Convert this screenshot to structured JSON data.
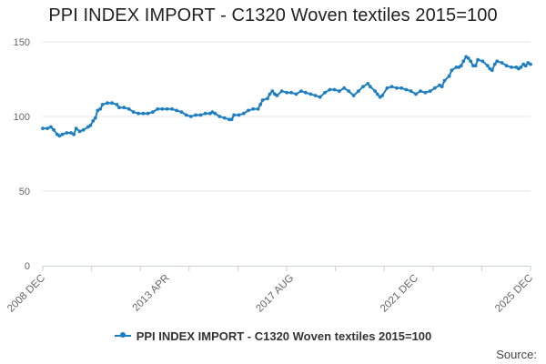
{
  "chart_data": {
    "type": "line",
    "title": "PPI INDEX IMPORT - C1320 Woven textiles 2015=100",
    "xlabel": "",
    "ylabel": "",
    "ylim": [
      0,
      150
    ],
    "y_ticks": [
      0,
      50,
      100,
      150
    ],
    "x_range": [
      2008.917,
      2025.917
    ],
    "x_tick_labels": [
      {
        "label": "2008 DEC",
        "x": 2008.917
      },
      {
        "label": "2013 APR",
        "x": 2013.25
      },
      {
        "label": "2017 AUG",
        "x": 2017.583
      },
      {
        "label": "2021 DEC",
        "x": 2021.917
      },
      {
        "label": "2025 DEC",
        "x": 2025.917
      }
    ],
    "series": [
      {
        "name": "PPI INDEX IMPORT - C1320 Woven textiles 2015=100",
        "color": "#1e7ec2",
        "points": [
          [
            2008.917,
            92
          ],
          [
            2009.08,
            92
          ],
          [
            2009.2,
            93
          ],
          [
            2009.3,
            91
          ],
          [
            2009.42,
            88
          ],
          [
            2009.5,
            87
          ],
          [
            2009.6,
            88
          ],
          [
            2009.75,
            89
          ],
          [
            2009.9,
            89
          ],
          [
            2010.0,
            88
          ],
          [
            2010.08,
            92
          ],
          [
            2010.2,
            90
          ],
          [
            2010.33,
            91
          ],
          [
            2010.5,
            93
          ],
          [
            2010.58,
            94
          ],
          [
            2010.67,
            97
          ],
          [
            2010.75,
            99
          ],
          [
            2010.83,
            104
          ],
          [
            2010.92,
            105
          ],
          [
            2011.0,
            108
          ],
          [
            2011.17,
            109
          ],
          [
            2011.33,
            109
          ],
          [
            2011.5,
            108
          ],
          [
            2011.58,
            106
          ],
          [
            2011.75,
            106
          ],
          [
            2011.92,
            105
          ],
          [
            2012.08,
            103
          ],
          [
            2012.25,
            102
          ],
          [
            2012.42,
            102
          ],
          [
            2012.58,
            102
          ],
          [
            2012.75,
            103
          ],
          [
            2012.92,
            105
          ],
          [
            2013.08,
            105
          ],
          [
            2013.25,
            105
          ],
          [
            2013.42,
            105
          ],
          [
            2013.58,
            104
          ],
          [
            2013.75,
            103
          ],
          [
            2013.92,
            101
          ],
          [
            2014.08,
            100
          ],
          [
            2014.25,
            101
          ],
          [
            2014.42,
            101
          ],
          [
            2014.58,
            102
          ],
          [
            2014.75,
            102
          ],
          [
            2014.83,
            103
          ],
          [
            2014.92,
            102
          ],
          [
            2015.08,
            100
          ],
          [
            2015.25,
            99
          ],
          [
            2015.42,
            98
          ],
          [
            2015.5,
            98
          ],
          [
            2015.58,
            101
          ],
          [
            2015.75,
            101
          ],
          [
            2015.92,
            102
          ],
          [
            2016.08,
            104
          ],
          [
            2016.25,
            105
          ],
          [
            2016.42,
            105
          ],
          [
            2016.5,
            108
          ],
          [
            2016.58,
            111
          ],
          [
            2016.75,
            112
          ],
          [
            2016.83,
            115
          ],
          [
            2016.92,
            117
          ],
          [
            2017.0,
            115
          ],
          [
            2017.08,
            114
          ],
          [
            2017.25,
            117
          ],
          [
            2017.42,
            116
          ],
          [
            2017.58,
            116
          ],
          [
            2017.75,
            115
          ],
          [
            2017.92,
            117
          ],
          [
            2018.08,
            116
          ],
          [
            2018.25,
            115
          ],
          [
            2018.42,
            114
          ],
          [
            2018.58,
            113
          ],
          [
            2018.75,
            116
          ],
          [
            2018.92,
            118
          ],
          [
            2019.08,
            118
          ],
          [
            2019.25,
            117
          ],
          [
            2019.42,
            119
          ],
          [
            2019.58,
            117
          ],
          [
            2019.75,
            114
          ],
          [
            2019.92,
            117
          ],
          [
            2020.08,
            120
          ],
          [
            2020.25,
            122
          ],
          [
            2020.33,
            120
          ],
          [
            2020.5,
            117
          ],
          [
            2020.58,
            115
          ],
          [
            2020.67,
            113
          ],
          [
            2020.75,
            114
          ],
          [
            2020.92,
            119
          ],
          [
            2021.08,
            120
          ],
          [
            2021.25,
            119
          ],
          [
            2021.42,
            119
          ],
          [
            2021.58,
            118
          ],
          [
            2021.75,
            117
          ],
          [
            2021.92,
            115
          ],
          [
            2022.08,
            117
          ],
          [
            2022.25,
            116
          ],
          [
            2022.42,
            117
          ],
          [
            2022.58,
            119
          ],
          [
            2022.75,
            121
          ],
          [
            2022.83,
            120
          ],
          [
            2022.92,
            124
          ],
          [
            2023.08,
            127
          ],
          [
            2023.17,
            131
          ],
          [
            2023.33,
            133
          ],
          [
            2023.42,
            133
          ],
          [
            2023.5,
            134
          ],
          [
            2023.58,
            137
          ],
          [
            2023.67,
            140
          ],
          [
            2023.75,
            139
          ],
          [
            2023.83,
            137
          ],
          [
            2023.92,
            134
          ],
          [
            2024.0,
            134
          ],
          [
            2024.08,
            138
          ],
          [
            2024.25,
            137
          ],
          [
            2024.42,
            134
          ],
          [
            2024.5,
            132
          ],
          [
            2024.58,
            131
          ],
          [
            2024.67,
            135
          ],
          [
            2024.75,
            137
          ],
          [
            2024.92,
            136
          ],
          [
            2025.08,
            134
          ],
          [
            2025.25,
            133
          ],
          [
            2025.42,
            133
          ],
          [
            2025.5,
            132
          ],
          [
            2025.58,
            133
          ],
          [
            2025.67,
            135
          ],
          [
            2025.75,
            134
          ],
          [
            2025.83,
            136
          ],
          [
            2025.917,
            135
          ]
        ]
      }
    ]
  },
  "legend": {
    "label": "PPI INDEX IMPORT - C1320 Woven textiles 2015=100"
  },
  "source_label": "Source:"
}
